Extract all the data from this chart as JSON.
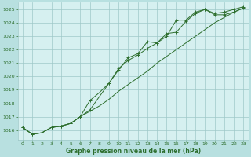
{
  "background_color": "#b8e0e0",
  "plot_bg_color": "#d6f0f0",
  "grid_color": "#9ec8c8",
  "line_color": "#2d6e2d",
  "xlabel": "Graphe pression niveau de la mer (hPa)",
  "ylim": [
    1015.3,
    1025.5
  ],
  "xlim": [
    -0.5,
    23.5
  ],
  "yticks": [
    1016,
    1017,
    1018,
    1019,
    1020,
    1021,
    1022,
    1023,
    1024,
    1025
  ],
  "xticks": [
    0,
    1,
    2,
    3,
    4,
    5,
    6,
    7,
    8,
    9,
    10,
    11,
    12,
    13,
    14,
    15,
    16,
    17,
    18,
    19,
    20,
    21,
    22,
    23
  ],
  "line1_x": [
    0,
    1,
    2,
    3,
    4,
    5,
    6,
    7,
    8,
    9,
    10,
    11,
    12,
    13,
    14,
    15,
    16,
    17,
    18,
    19,
    20,
    21,
    22,
    23
  ],
  "line1_y": [
    1016.2,
    1015.7,
    1015.8,
    1016.2,
    1016.3,
    1016.5,
    1017.0,
    1017.4,
    1017.8,
    1018.3,
    1018.9,
    1019.4,
    1019.9,
    1020.4,
    1021.0,
    1021.5,
    1022.0,
    1022.5,
    1023.0,
    1023.5,
    1024.0,
    1024.4,
    1024.8,
    1025.1
  ],
  "line2_x": [
    0,
    1,
    2,
    3,
    4,
    5,
    6,
    7,
    8,
    9,
    10,
    11,
    12,
    13,
    14,
    15,
    16,
    17,
    18,
    19,
    20,
    21,
    22,
    23
  ],
  "line2_y": [
    1016.2,
    1015.7,
    1015.8,
    1016.2,
    1016.3,
    1016.5,
    1017.0,
    1018.2,
    1018.8,
    1019.5,
    1020.6,
    1021.2,
    1021.6,
    1022.1,
    1022.5,
    1023.0,
    1024.2,
    1024.2,
    1024.8,
    1025.0,
    1024.6,
    1024.6,
    1024.8,
    1025.1
  ],
  "line3_x": [
    0,
    1,
    2,
    3,
    4,
    5,
    6,
    7,
    8,
    9,
    10,
    11,
    12,
    13,
    14,
    15,
    16,
    17,
    18,
    19,
    20,
    21,
    22,
    23
  ],
  "line3_y": [
    1016.2,
    1015.7,
    1015.8,
    1016.2,
    1016.3,
    1016.5,
    1017.0,
    1017.5,
    1018.5,
    1019.5,
    1020.5,
    1021.4,
    1021.7,
    1022.6,
    1022.5,
    1023.2,
    1023.3,
    1024.1,
    1024.7,
    1025.0,
    1024.7,
    1024.8,
    1025.0,
    1025.2
  ]
}
